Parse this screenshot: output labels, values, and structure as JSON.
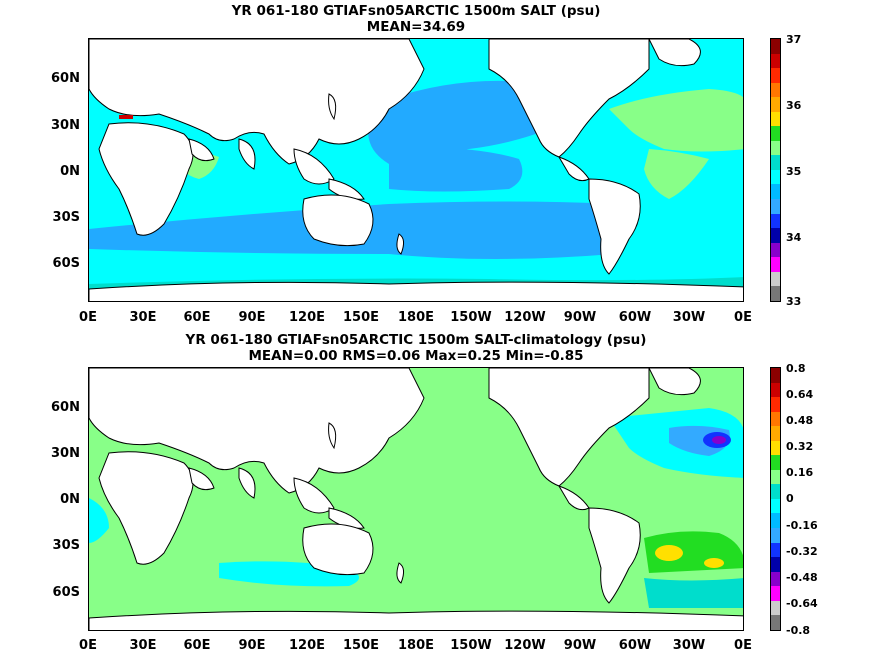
{
  "panels": [
    {
      "title_line1": "YR 061-180 GTIAFsn05ARCTIC 1500m SALT (psu)",
      "title_line2": "MEAN=34.69",
      "lat_labels": [
        "60N",
        "30N",
        "0N",
        "30S",
        "60S"
      ],
      "lon_labels": [
        "0E",
        "30E",
        "60E",
        "90E",
        "120E",
        "150E",
        "180E",
        "150W",
        "120W",
        "90W",
        "60W",
        "30W",
        "0E"
      ],
      "colorbar_labels": [
        "37",
        "36",
        "35",
        "34",
        "33"
      ],
      "colorbar_colors": [
        "#8b0000",
        "#cc0000",
        "#ff2a00",
        "#ff7700",
        "#ffaa00",
        "#ffe000",
        "#22dd22",
        "#88ff88",
        "#00ddcc",
        "#00ffff",
        "#00bbff",
        "#33aaff",
        "#1133ff",
        "#0000aa",
        "#8800cc",
        "#ff00ff",
        "#cccccc",
        "#777777"
      ]
    },
    {
      "title_line1": "YR 061-180 GTIAFsn05ARCTIC 1500m SALT-climatology (psu)",
      "title_line2": "MEAN=0.00   RMS=0.06   Max=0.25   Min=-0.85",
      "lat_labels": [
        "60N",
        "30N",
        "0N",
        "30S",
        "60S"
      ],
      "lon_labels": [
        "0E",
        "30E",
        "60E",
        "90E",
        "120E",
        "150E",
        "180E",
        "150W",
        "120W",
        "90W",
        "60W",
        "30W",
        "0E"
      ],
      "colorbar_labels": [
        "0.8",
        "0.64",
        "0.48",
        "0.32",
        "0.16",
        "0",
        "-0.16",
        "-0.32",
        "-0.48",
        "-0.64",
        "-0.8"
      ],
      "colorbar_colors": [
        "#8b0000",
        "#cc0000",
        "#ff2a00",
        "#ff7700",
        "#ffaa00",
        "#ffe000",
        "#22dd22",
        "#88ff88",
        "#00ddcc",
        "#00ffff",
        "#00bbff",
        "#33aaff",
        "#1133ff",
        "#0000aa",
        "#8800cc",
        "#ff00ff",
        "#cccccc",
        "#777777"
      ]
    }
  ]
}
